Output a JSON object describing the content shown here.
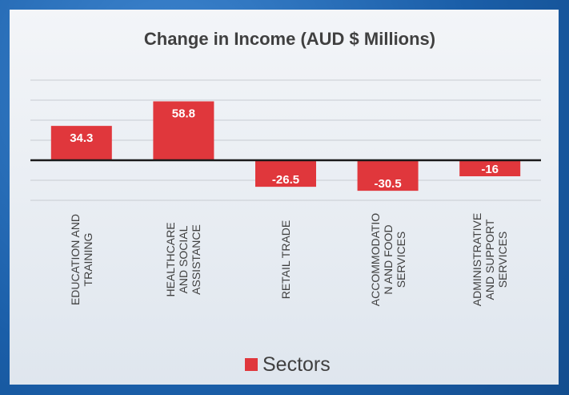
{
  "chart_data": {
    "type": "bar",
    "title": "Change in Income (AUD $ Millions)",
    "categories": [
      "EDUCATION AND TRAINING",
      "HEALTHCARE AND SOCIAL ASSISTANCE",
      "RETAIL TRADE",
      "ACCOMMODATION AND FOOD SERVICES",
      "ADMINISTRATIVE AND SUPPORT SERVICES"
    ],
    "series": [
      {
        "name": "Sectors",
        "color": "#e0373c",
        "values": [
          34.3,
          58.8,
          -26.5,
          -30.5,
          -16
        ]
      }
    ],
    "ylim": [
      -40,
      80
    ],
    "yticks": [
      -40,
      -20,
      0,
      20,
      40,
      60,
      80
    ],
    "grid": true,
    "legend": "bottom"
  }
}
